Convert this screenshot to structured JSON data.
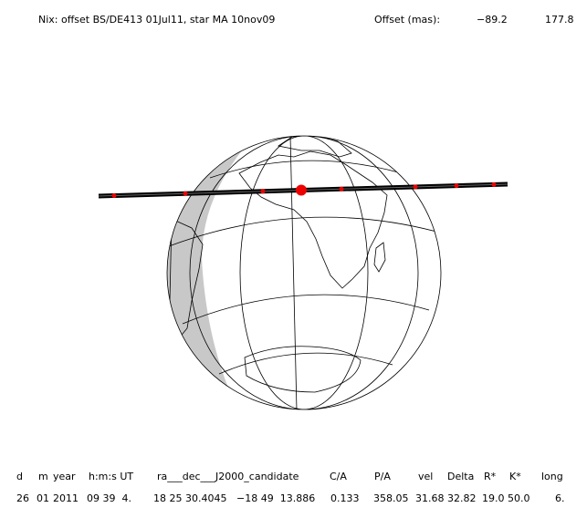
{
  "header": {
    "title": "Nix: offset BS/DE413 01Jul11, star MA 10nov09",
    "offset_label": "Offset (mas):",
    "offset_values": [
      "−89.2",
      "177.8"
    ]
  },
  "table": {
    "headers": [
      "d",
      "m",
      "year",
      "h:m:s UT",
      "ra___dec___J2000_candidate",
      "C/A",
      "P/A",
      "vel",
      "Delta",
      "R*",
      "K*",
      "long"
    ],
    "rows": [
      [
        "26",
        "01",
        "2011",
        "09 39  4.",
        "18 25 30.4045",
        "−18 49  13.886",
        "0.133",
        "358.05",
        "31.68",
        "32.82",
        "19.0",
        "50.0",
        "6."
      ]
    ]
  }
}
